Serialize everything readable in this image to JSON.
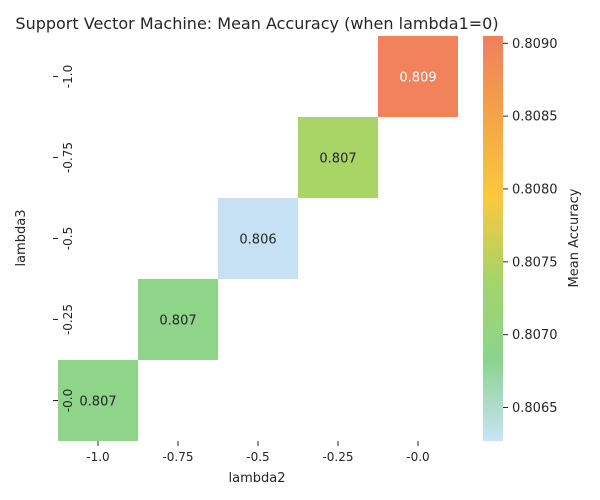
{
  "chart_data": {
    "type": "heatmap",
    "title": "Support Vector Machine: Mean Accuracy (when lambda1=0)",
    "xlabel": "lambda2",
    "ylabel": "lambda3",
    "x_categories": [
      "-1.0",
      "-0.75",
      "-0.5",
      "-0.25",
      "-0.0"
    ],
    "y_categories": [
      "-1.0",
      "-0.75",
      "-0.5",
      "-0.25",
      "-0.0"
    ],
    "cells": [
      {
        "x": "-1.0",
        "y": "-0.0",
        "value": 0.8069,
        "label": "0.807"
      },
      {
        "x": "-0.75",
        "y": "-0.25",
        "value": 0.8069,
        "label": "0.807"
      },
      {
        "x": "-0.5",
        "y": "-0.5",
        "value": 0.8063,
        "label": "0.806"
      },
      {
        "x": "-0.25",
        "y": "-0.75",
        "value": 0.8074,
        "label": "0.807"
      },
      {
        "x": "-0.0",
        "y": "-1.0",
        "value": 0.809,
        "label": "0.809"
      }
    ],
    "colorbar": {
      "label": "Mean Accuracy",
      "vmin": 0.80627,
      "vmax": 0.80905,
      "ticks": [
        "0.8065",
        "0.8070",
        "0.8075",
        "0.8080",
        "0.8085",
        "0.8090"
      ],
      "colors": [
        "#c9e3f8",
        "#8ad48e",
        "#a6d467",
        "#fbc93c",
        "#f6a445",
        "#f07f5e"
      ]
    }
  }
}
